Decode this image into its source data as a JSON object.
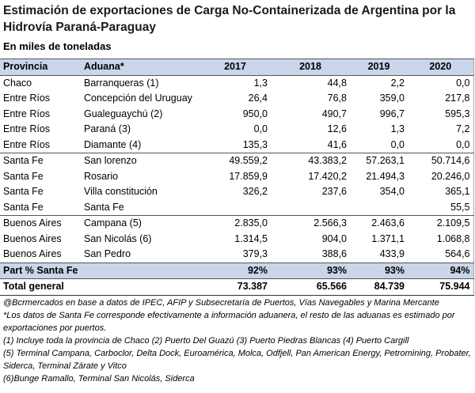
{
  "title": "Estimación de exportaciones de Carga No-Containerizada de Argentina por la Hidrovía Paraná-Paraguay",
  "subtitle": "En miles de toneladas",
  "table": {
    "header": [
      "Provincia",
      "Aduana*",
      "2017",
      "2018",
      "2019",
      "2020"
    ],
    "groups": [
      [
        [
          "Chaco",
          "Barranqueras (1)",
          "1,3",
          "44,8",
          "2,2",
          "0,0"
        ],
        [
          "Entre Ríos",
          "Concepción del Uruguay",
          "26,4",
          "76,8",
          "359,0",
          "217,8"
        ],
        [
          "Entre Ríos",
          "Gualeguaychú (2)",
          "950,0",
          "490,7",
          "996,7",
          "595,3"
        ],
        [
          "Entre Ríos",
          "Paraná (3)",
          "0,0",
          "12,6",
          "1,3",
          "7,2"
        ],
        [
          "Entre Ríos",
          "Diamante (4)",
          "135,3",
          "41,6",
          "0,0",
          "0,0"
        ]
      ],
      [
        [
          "Santa Fe",
          "San lorenzo",
          "49.559,2",
          "43.383,2",
          "57.263,1",
          "50.714,6"
        ],
        [
          "Santa Fe",
          "Rosario",
          "17.859,9",
          "17.420,2",
          "21.494,3",
          "20.246,0"
        ],
        [
          "Santa Fe",
          "Villa constitución",
          "326,2",
          "237,6",
          "354,0",
          "365,1"
        ],
        [
          "Santa Fe",
          "Santa Fe",
          null,
          null,
          null,
          "55,5"
        ]
      ],
      [
        [
          "Buenos Aires",
          "Campana (5)",
          "2.835,0",
          "2.566,3",
          "2.463,6",
          "2.109,5"
        ],
        [
          "Buenos Aires",
          "San Nicolás (6)",
          "1.314,5",
          "904,0",
          "1.371,1",
          "1.068,8"
        ],
        [
          "Buenos Aires",
          "San Pedro",
          "379,3",
          "388,6",
          "433,9",
          "564,6"
        ]
      ]
    ],
    "summary": [
      [
        "Part % Santa Fe",
        null,
        "92%",
        "93%",
        "93%",
        "94%"
      ],
      [
        "Total general",
        null,
        "73.387",
        "65.566",
        "84.739",
        "75.944"
      ]
    ]
  },
  "notes": [
    "@Bcrmercados en base a datos de IPEC, AFIP y Subsecretaría de Puertos, Vías Navegables y Marina Mercante",
    "*Los datos de Santa Fe corresponde efectivamente a información aduanera, el resto de las aduanas es estimado por exportaciones por puertos.",
    "(1) Incluye toda la provincia de Chaco (2) Puerto Del Guazú (3) Puerto Piedras Blancas (4) Puerto Cargill",
    "(5) Terminal Campana, Carboclor, Delta Dock, Euroamérica, Molca, Odfjell, Pan American Energy, Petromining, Probater, Siderca, Terminal Zárate y Vitco",
    "(6)Bunge Ramallo, Terminal San Nicolás, Siderca"
  ]
}
